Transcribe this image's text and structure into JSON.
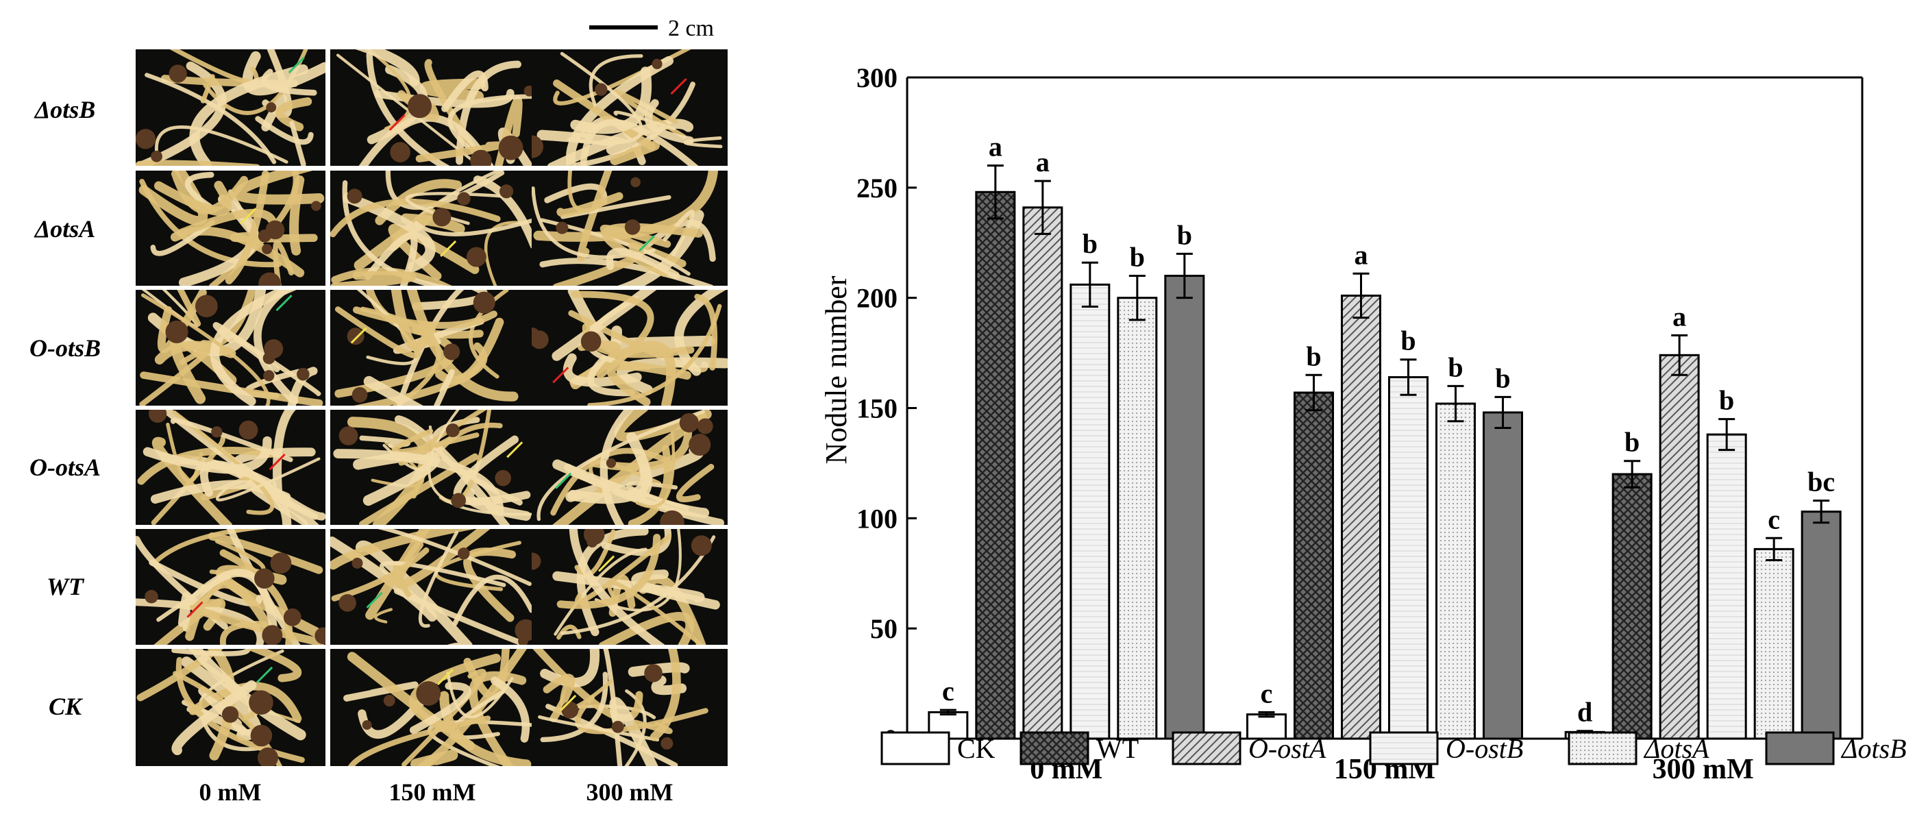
{
  "photo_panel": {
    "scale_bar_label": "2 cm",
    "row_labels": [
      "ΔotsB",
      "ΔotsA",
      "O-otsB",
      "O-otsA",
      "WT",
      "CK"
    ],
    "column_labels": [
      "0 mM",
      "150 mM",
      "300 mM"
    ],
    "colors": {
      "background": "#0d0d0b",
      "root": "#e0c17a",
      "root_light": "#f2dcaa",
      "nodule": "#5a3a22",
      "arrow_red": "#e02020",
      "arrow_yellow": "#f0e050",
      "arrow_green": "#30c070"
    }
  },
  "chart_data": {
    "type": "bar",
    "categories": [
      "0 mM",
      "150 mM",
      "300 mM"
    ],
    "ylabel": "Nodule number",
    "xlabel": "",
    "ylim": [
      0,
      300
    ],
    "yticks": [
      0,
      50,
      100,
      150,
      200,
      250,
      300
    ],
    "legend_position": "bottom",
    "series": [
      {
        "name": "CK",
        "italic": false,
        "pattern": "white",
        "values": [
          12,
          11,
          3
        ],
        "errors": [
          1,
          1,
          0.5
        ],
        "letters": [
          "c",
          "c",
          "d"
        ]
      },
      {
        "name": "WT",
        "italic": false,
        "pattern": "crosshatch",
        "values": [
          248,
          157,
          120
        ],
        "errors": [
          12,
          8,
          6
        ],
        "letters": [
          "a",
          "b",
          "b"
        ]
      },
      {
        "name": "O-ostA",
        "italic": true,
        "pattern": "diagonal",
        "values": [
          241,
          201,
          174
        ],
        "errors": [
          12,
          10,
          9
        ],
        "letters": [
          "a",
          "a",
          "a"
        ]
      },
      {
        "name": "O-ostB",
        "italic": true,
        "pattern": "light-lines",
        "values": [
          206,
          164,
          138
        ],
        "errors": [
          10,
          8,
          7
        ],
        "letters": [
          "b",
          "b",
          "b"
        ]
      },
      {
        "name": "ΔotsA",
        "italic": true,
        "pattern": "dots",
        "values": [
          200,
          152,
          86
        ],
        "errors": [
          10,
          8,
          5
        ],
        "letters": [
          "b",
          "b",
          "c"
        ]
      },
      {
        "name": "ΔotsB",
        "italic": true,
        "pattern": "dark",
        "values": [
          210,
          148,
          103
        ],
        "errors": [
          10,
          7,
          5
        ],
        "letters": [
          "b",
          "b",
          "bc"
        ]
      }
    ]
  }
}
